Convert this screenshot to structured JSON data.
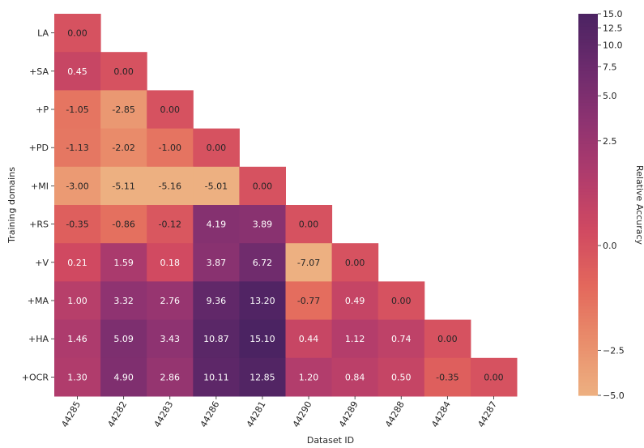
{
  "chart_data": {
    "type": "heatmap",
    "xlabel": "Dataset ID",
    "ylabel": "Training domains",
    "colorbar_label": "Relative Accuracy",
    "row_labels": [
      "LA",
      "+SA",
      "+P",
      "+PD",
      "+MI",
      "+RS",
      "+V",
      "+MA",
      "+HA",
      "+OCR"
    ],
    "col_labels": [
      "44285",
      "44282",
      "44283",
      "44286",
      "44281",
      "44290",
      "44289",
      "44288",
      "44284",
      "44287"
    ],
    "values": [
      [
        0.0
      ],
      [
        0.45,
        0.0
      ],
      [
        -1.05,
        -2.85,
        0.0
      ],
      [
        -1.13,
        -2.02,
        -1.0,
        0.0
      ],
      [
        -3.0,
        -5.11,
        -5.16,
        -5.01,
        0.0
      ],
      [
        -0.35,
        -0.86,
        -0.12,
        4.19,
        3.89,
        0.0
      ],
      [
        0.21,
        1.59,
        0.18,
        3.87,
        6.72,
        -7.07,
        0.0
      ],
      [
        1.0,
        3.32,
        2.76,
        9.36,
        13.2,
        -0.77,
        0.49,
        0.0
      ],
      [
        1.46,
        5.09,
        3.43,
        10.87,
        15.1,
        0.44,
        1.12,
        0.74,
        0.0
      ],
      [
        1.3,
        4.9,
        2.86,
        10.11,
        12.85,
        1.2,
        0.84,
        0.5,
        -0.35,
        0.0
      ]
    ],
    "colorbar": {
      "scale": "symlog",
      "range": [
        -5.0,
        15.0
      ],
      "ticks": [
        -5.0,
        -2.5,
        0.0,
        2.5,
        5.0,
        7.5,
        10.0,
        12.5,
        15.0
      ],
      "tick_labels": [
        "−5.0",
        "−2.5",
        "0.0",
        "2.5",
        "5.0",
        "7.5",
        "10.0",
        "12.5",
        "15.0"
      ]
    },
    "colormap": "flare",
    "color_stops": [
      "#edb081",
      "#e98d6b",
      "#e3685c",
      "#d14a61",
      "#b13c6c",
      "#8f3371",
      "#6c2b6d",
      "#4b2362"
    ]
  }
}
